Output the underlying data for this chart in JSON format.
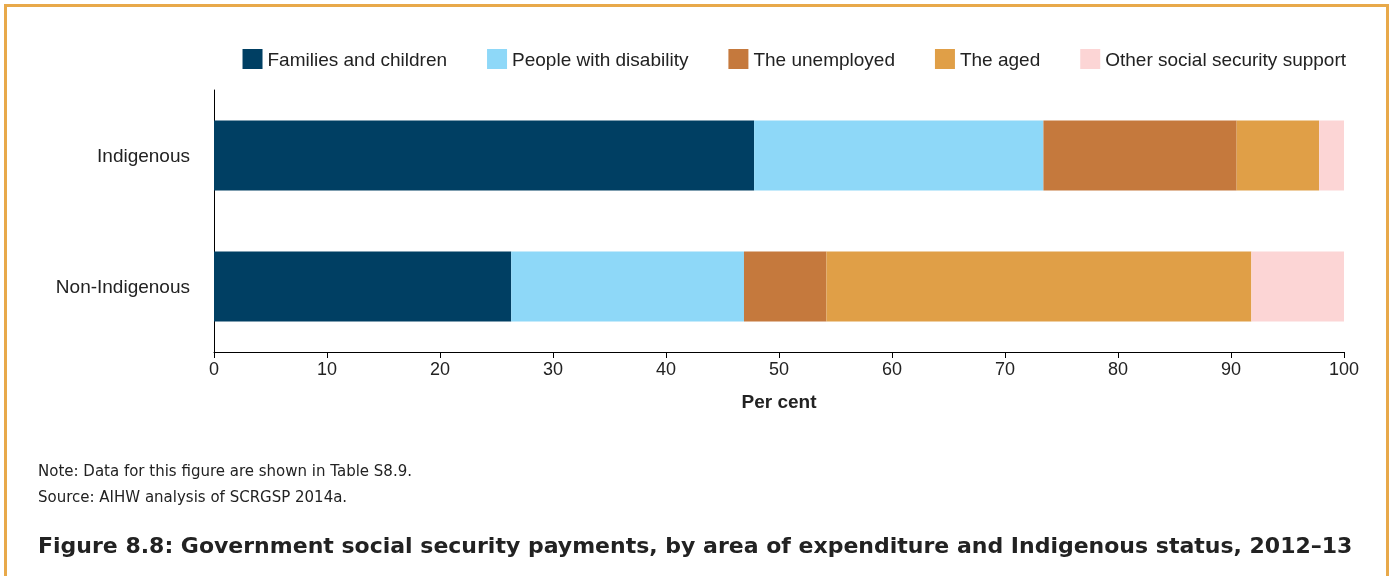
{
  "chart_data": {
    "type": "bar",
    "orientation": "horizontal",
    "stacked": true,
    "title": "Figure 8.8: Government social security payments, by area of expenditure and Indigenous status, 2012–13",
    "xlabel": "Per cent",
    "categories": [
      "Indigenous",
      "Non-Indigenous"
    ],
    "series": [
      {
        "name": "Families and children",
        "color": "#003f63",
        "values": [
          47.8,
          26.3
        ]
      },
      {
        "name": "People with disability",
        "color": "#8ed8f8",
        "values": [
          25.6,
          20.6
        ]
      },
      {
        "name": "The unemployed",
        "color": "#c5793d",
        "values": [
          17.1,
          7.3
        ]
      },
      {
        "name": "The aged",
        "color": "#e09f47",
        "values": [
          7.3,
          37.6
        ]
      },
      {
        "name": "Other social security support",
        "color": "#fcd5d5",
        "values": [
          2.2,
          8.2
        ]
      }
    ],
    "xlim": [
      0,
      100
    ],
    "xticks": [
      0,
      10,
      20,
      30,
      40,
      50,
      60,
      70,
      80,
      90,
      100
    ],
    "grid": false,
    "legend": "top right",
    "annotations": [
      "Note: Data for this figure are shown in Table S8.9.",
      "Source: AIHW analysis of SCRGSP 2014a."
    ]
  }
}
